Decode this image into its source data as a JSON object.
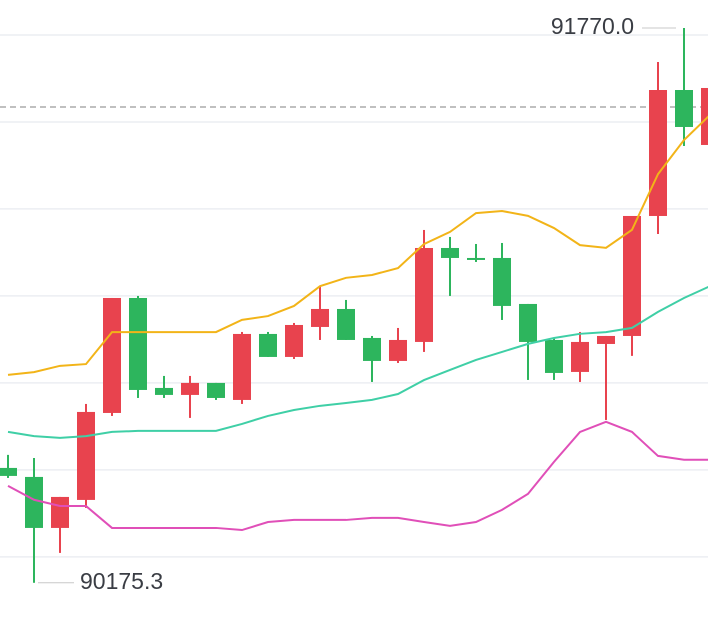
{
  "chart_data": {
    "type": "candlestick",
    "ylim": [
      90077,
      91850.5
    ],
    "grid_lines": [
      90250,
      90500,
      90750,
      91000,
      91250,
      91500,
      91750
    ],
    "up_color": "#e8434e",
    "down_color": "#2db55d",
    "open": [
      90505.5,
      90479.6,
      90333,
      90413.5,
      90663.5,
      90994,
      90735.4,
      90715.3,
      90749.8,
      90700.9,
      90890.6,
      90824.5,
      90910.7,
      90962.4,
      90879.1,
      90813,
      90867.6,
      91137.7,
      91109,
      91109,
      90976.8,
      90873.3,
      90781.4,
      90861.8,
      90884.8,
      91229.7,
      91591.8,
      91433.8
    ],
    "high": [
      90543,
      90534,
      90422.1,
      90689.4,
      90994,
      90999.8,
      90769.9,
      90769.9,
      90749.8,
      90896.3,
      90896.3,
      90922.2,
      91028.5,
      90988.3,
      90884.8,
      90907.8,
      91189.5,
      91169.4,
      91149.2,
      91152.1,
      90976.8,
      90879.1,
      90896.3,
      90884.8,
      91229.7,
      91672.3,
      91770,
      91606.2
    ],
    "low": [
      90476.7,
      90175.3,
      90261.2,
      90390.5,
      90654.9,
      90706.6,
      90706.6,
      90649.2,
      90700.9,
      90689.4,
      90824.5,
      90818.7,
      90873.3,
      90873.3,
      90752.6,
      90807.2,
      90838.9,
      90999.8,
      91097.5,
      90930.8,
      90758.4,
      90758.4,
      90752.6,
      90643.4,
      90827.4,
      91178,
      91430.9,
      91419.4
    ],
    "close": [
      90482.5,
      90333,
      90422.1,
      90666.4,
      90994,
      90729.6,
      90715.3,
      90749.8,
      90706.6,
      90890.6,
      90824.5,
      90916.4,
      90962.4,
      90873.3,
      90813,
      90873.3,
      91137.7,
      91109,
      91103.3,
      90971.1,
      90867.6,
      90778.5,
      90867.6,
      90884.8,
      91229.7,
      91591.8,
      91485.5,
      91597.6
    ],
    "bands": [
      {
        "color": "#f2b418",
        "values": [
          90773,
          90781,
          90799,
          90804,
          90896,
          90896,
          90896,
          90896,
          90896,
          90931,
          90942,
          90971,
          91028,
          91052,
          91060,
          91080,
          91149,
          91184,
          91238,
          91244,
          91230,
          91195,
          91146,
          91138,
          91190,
          91350,
          91448,
          91520
        ]
      },
      {
        "color": "#3fcfa6",
        "values": [
          90609,
          90597,
          90592,
          90597,
          90609,
          90612,
          90612,
          90612,
          90612,
          90632,
          90655,
          90672,
          90684,
          90692,
          90701,
          90718,
          90758,
          90787,
          90816,
          90839,
          90862,
          90879,
          90891,
          90896,
          90908,
          90954,
          90994,
          91028
        ]
      },
      {
        "color": "#e04fb8",
        "values": [
          90454,
          90414,
          90396,
          90396,
          90333,
          90333,
          90333,
          90333,
          90333,
          90327,
          90350,
          90356,
          90356,
          90356,
          90362,
          90362,
          90350,
          90339,
          90350,
          90385,
          90431,
          90523,
          90609,
          90638,
          90609,
          90540,
          90529,
          90529
        ]
      }
    ],
    "price_line": 91543,
    "annotations": [
      {
        "value": 91770,
        "label": "91770.0"
      },
      {
        "value": 90175.3,
        "label": "90175.3"
      }
    ]
  }
}
